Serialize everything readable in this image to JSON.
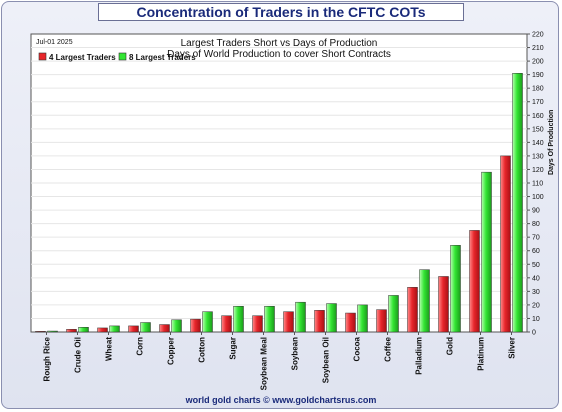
{
  "title": "Concentration of Traders in the CFTC COTs",
  "footer": "world gold charts © www.goldchartsrus.com",
  "chart_data": {
    "type": "bar",
    "title": "Largest Traders Short vs Days of Production",
    "subtitle": "Days of World Production to cover Short Contracts",
    "date": "Jul-01  2025",
    "ylabel": "Days Of Production",
    "ylim": [
      0,
      220
    ],
    "yticks": [
      0,
      10,
      20,
      30,
      40,
      50,
      60,
      70,
      80,
      90,
      100,
      110,
      120,
      130,
      140,
      150,
      160,
      170,
      180,
      190,
      200,
      210,
      220
    ],
    "legend_position": "top-left",
    "categories": [
      "Rough Rice",
      "Crude Oil",
      "Wheat",
      "Corn",
      "Copper",
      "Cotton",
      "Sugar",
      "Soybean Meal",
      "Soybean",
      "Soybean Oil",
      "Cocoa",
      "Coffee",
      "Palladium",
      "Gold",
      "Platinum",
      "Silver"
    ],
    "series": [
      {
        "name": "4 Largest Traders",
        "color": "#e8262b",
        "values": [
          0.5,
          2,
          3,
          4.5,
          5.5,
          9.5,
          12,
          12,
          15,
          16,
          14,
          16.5,
          33,
          41,
          75,
          130
        ]
      },
      {
        "name": "8 Largest Traders",
        "color": "#33e633",
        "values": [
          0.7,
          3.5,
          4.5,
          7,
          9,
          15,
          19,
          19,
          22,
          21,
          20,
          27,
          46,
          64,
          118,
          191
        ]
      }
    ]
  }
}
